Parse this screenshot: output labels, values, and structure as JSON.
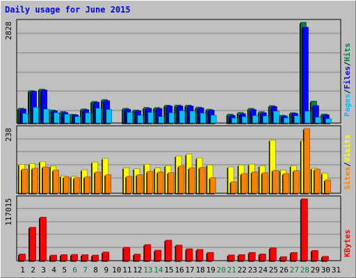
{
  "title": "Daily usage for June 2015",
  "colors": {
    "hits": "#008040",
    "files": "#0000ff",
    "pages": "#00c0ff",
    "visits": "#ffff00",
    "sites": "#ff8000",
    "kbytes": "#ff0000",
    "weekend_label": "#008040",
    "weekday_label": "#000000",
    "title": "#0000ff"
  },
  "chart_data": [
    {
      "type": "bar",
      "panel": "top",
      "max_label": "2828",
      "ylim": [
        0,
        2828
      ],
      "categories": [
        "1",
        "2",
        "3",
        "4",
        "5",
        "6",
        "7",
        "8",
        "9",
        "10",
        "11",
        "12",
        "13",
        "14",
        "15",
        "16",
        "17",
        "18",
        "19",
        "20",
        "21",
        "22",
        "23",
        "24",
        "25",
        "26",
        "27",
        "28",
        "29",
        "30",
        "31"
      ],
      "series": [
        {
          "name": "Hits",
          "values": [
            416,
            912,
            954,
            368,
            323,
            247,
            396,
            606,
            660,
            0,
            413,
            367,
            438,
            434,
            502,
            505,
            502,
            448,
            389,
            0,
            251,
            300,
            413,
            318,
            488,
            218,
            292,
            2828,
            616,
            252,
            0
          ]
        },
        {
          "name": "Files",
          "values": [
            395,
            888,
            928,
            340,
            295,
            228,
            373,
            585,
            625,
            0,
            387,
            342,
            412,
            410,
            477,
            479,
            477,
            424,
            362,
            0,
            214,
            261,
            380,
            288,
            463,
            197,
            273,
            2690,
            488,
            231,
            0
          ]
        },
        {
          "name": "Pages",
          "values": [
            268,
            445,
            390,
            287,
            246,
            181,
            284,
            417,
            380,
            0,
            299,
            216,
            295,
            180,
            288,
            345,
            334,
            277,
            218,
            0,
            140,
            177,
            209,
            198,
            333,
            145,
            202,
            331,
            162,
            119,
            0
          ]
        }
      ],
      "legend": [
        "Hits",
        "Files",
        "Pages"
      ]
    },
    {
      "type": "bar",
      "panel": "middle",
      "max_label": "238",
      "ylim": [
        0,
        238
      ],
      "categories": [
        "1",
        "2",
        "3",
        "4",
        "5",
        "6",
        "7",
        "8",
        "9",
        "10",
        "11",
        "12",
        "13",
        "14",
        "15",
        "16",
        "17",
        "18",
        "19",
        "20",
        "21",
        "22",
        "23",
        "24",
        "25",
        "26",
        "27",
        "28",
        "29",
        "30",
        "31"
      ],
      "series": [
        {
          "name": "Visits",
          "values": [
            106,
            109,
            117,
            100,
            64,
            62,
            86,
            115,
            128,
            0,
            94,
            90,
            107,
            93,
            102,
            137,
            144,
            130,
            104,
            0,
            97,
            104,
            107,
            101,
            196,
            86,
            101,
            196,
            92,
            74,
            0
          ]
        },
        {
          "name": "Sites",
          "values": [
            89,
            92,
            97,
            85,
            60,
            57,
            60,
            78,
            68,
            0,
            62,
            68,
            80,
            78,
            76,
            100,
            93,
            95,
            57,
            0,
            42,
            72,
            78,
            75,
            84,
            72,
            83,
            238,
            88,
            49,
            0
          ]
        }
      ],
      "legend": [
        "Visits",
        "Sites"
      ]
    },
    {
      "type": "bar",
      "panel": "bottom",
      "max_label": "117015",
      "ylim": [
        0,
        117015
      ],
      "categories": [
        "1",
        "2",
        "3",
        "4",
        "5",
        "6",
        "7",
        "8",
        "9",
        "10",
        "11",
        "12",
        "13",
        "14",
        "15",
        "16",
        "17",
        "18",
        "19",
        "20",
        "21",
        "22",
        "23",
        "24",
        "25",
        "26",
        "27",
        "28",
        "29",
        "30",
        "31"
      ],
      "series": [
        {
          "name": "KBytes",
          "values": [
            12500,
            63100,
            82200,
            10500,
            11300,
            11800,
            11300,
            10500,
            16200,
            0,
            25300,
            12400,
            30400,
            19800,
            38700,
            29500,
            22400,
            21100,
            15500,
            0,
            10800,
            11400,
            15600,
            12600,
            24000,
            7500,
            15400,
            117015,
            19200,
            8100,
            0
          ]
        }
      ],
      "legend": [
        "KBytes"
      ]
    }
  ],
  "days": [
    {
      "label": "1",
      "weekend": false
    },
    {
      "label": "2",
      "weekend": false
    },
    {
      "label": "3",
      "weekend": false
    },
    {
      "label": "4",
      "weekend": false
    },
    {
      "label": "5",
      "weekend": false
    },
    {
      "label": "6",
      "weekend": true
    },
    {
      "label": "7",
      "weekend": true
    },
    {
      "label": "8",
      "weekend": false
    },
    {
      "label": "9",
      "weekend": false
    },
    {
      "label": "10",
      "weekend": false
    },
    {
      "label": "11",
      "weekend": false
    },
    {
      "label": "12",
      "weekend": false
    },
    {
      "label": "13",
      "weekend": true
    },
    {
      "label": "14",
      "weekend": true
    },
    {
      "label": "15",
      "weekend": false
    },
    {
      "label": "16",
      "weekend": false
    },
    {
      "label": "17",
      "weekend": false
    },
    {
      "label": "18",
      "weekend": false
    },
    {
      "label": "19",
      "weekend": false
    },
    {
      "label": "20",
      "weekend": true
    },
    {
      "label": "21",
      "weekend": true
    },
    {
      "label": "22",
      "weekend": false
    },
    {
      "label": "23",
      "weekend": false
    },
    {
      "label": "24",
      "weekend": false
    },
    {
      "label": "25",
      "weekend": false
    },
    {
      "label": "26",
      "weekend": false
    },
    {
      "label": "27",
      "weekend": true
    },
    {
      "label": "28",
      "weekend": true
    },
    {
      "label": "29",
      "weekend": false
    },
    {
      "label": "30",
      "weekend": false
    },
    {
      "label": "31",
      "weekend": false
    }
  ]
}
